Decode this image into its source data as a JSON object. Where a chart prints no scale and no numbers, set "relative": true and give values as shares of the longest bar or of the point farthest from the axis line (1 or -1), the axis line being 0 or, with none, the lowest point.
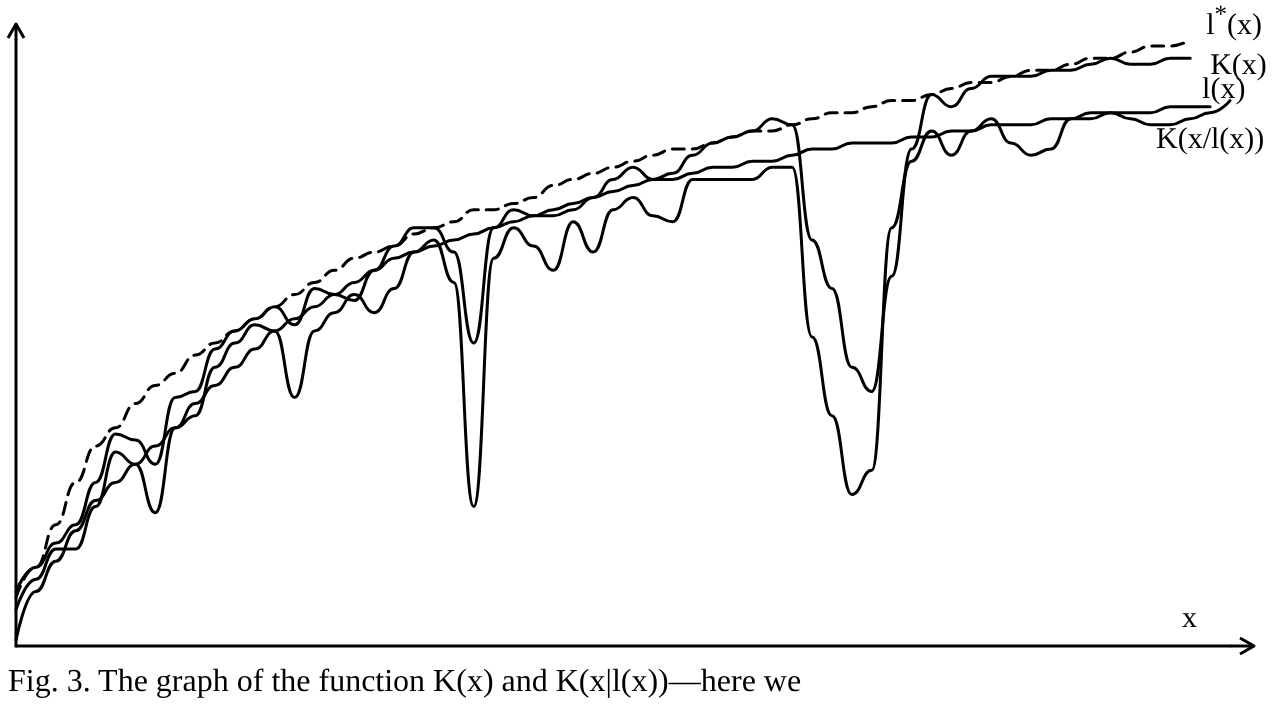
{
  "chart_data": {
    "type": "line",
    "relative": true,
    "xlabel": "x",
    "legend": false,
    "grid": false,
    "marker": "none",
    "categories": [
      null,
      null,
      null,
      null,
      null,
      null,
      null,
      null,
      null,
      null,
      null,
      null,
      null,
      null,
      null,
      null,
      null,
      null,
      null,
      null,
      null,
      null,
      null,
      null,
      null,
      null,
      null,
      null,
      null,
      null,
      null,
      null,
      null,
      null,
      null,
      null,
      null,
      null,
      null,
      null,
      null,
      null,
      null,
      null,
      null,
      null,
      null,
      null,
      null,
      null,
      null,
      null,
      null,
      null,
      null,
      null,
      null,
      null,
      null,
      null,
      null,
      null
    ],
    "series": [
      {
        "name": "l$^{*}$(x)",
        "color": "#000000",
        "line_style": "dashed",
        "values": [
          0.08,
          0.13,
          0.2,
          0.27,
          0.33,
          0.36,
          0.4,
          0.43,
          0.45,
          0.48,
          0.5,
          0.52,
          0.54,
          0.56,
          0.58,
          0.6,
          0.62,
          0.64,
          0.65,
          0.66,
          0.68,
          0.69,
          0.7,
          0.72,
          0.72,
          0.73,
          0.74,
          0.76,
          0.77,
          0.78,
          0.79,
          0.8,
          0.81,
          0.82,
          0.82,
          0.83,
          0.84,
          0.85,
          0.85,
          0.86,
          0.87,
          0.88,
          0.88,
          0.89,
          0.9,
          0.9,
          0.91,
          0.92,
          0.93,
          0.93,
          0.94,
          0.95,
          0.95,
          0.96,
          0.97,
          0.97,
          0.98,
          0.99,
          0.99,
          1,
          null,
          null
        ]
      },
      {
        "name": "K(x)",
        "color": "#000000",
        "line_style": "solid",
        "values": [
          0.09,
          0.13,
          0.17,
          0.2,
          0.27,
          0.35,
          0.34,
          0.3,
          0.41,
          0.42,
          0.49,
          0.52,
          0.54,
          0.56,
          0.53,
          0.59,
          0.58,
          0.57,
          0.62,
          0.66,
          0.69,
          0.69,
          0.65,
          0.5,
          0.69,
          0.72,
          0.71,
          0.71,
          0.72,
          0.74,
          0.77,
          0.79,
          0.77,
          0.78,
          0.81,
          0.83,
          0.84,
          0.85,
          0.87,
          0.86,
          0.67,
          0.59,
          0.46,
          0.42,
          0.61,
          0.82,
          0.91,
          0.89,
          0.92,
          0.94,
          0.94,
          0.94,
          0.95,
          0.95,
          0.96,
          0.97,
          0.96,
          0.96,
          0.97,
          0.97,
          null,
          null
        ]
      },
      {
        "name": "l(x)",
        "color": "#000000",
        "line_style": "solid",
        "values": [
          0.01,
          0.09,
          0.14,
          0.19,
          0.24,
          0.27,
          0.3,
          0.33,
          0.36,
          0.4,
          0.43,
          0.46,
          0.49,
          0.52,
          0.54,
          0.56,
          0.58,
          0.6,
          0.62,
          0.64,
          0.65,
          0.66,
          0.67,
          0.68,
          0.69,
          0.7,
          0.71,
          0.72,
          0.73,
          0.74,
          0.75,
          0.76,
          0.77,
          0.77,
          0.78,
          0.79,
          0.79,
          0.8,
          0.8,
          0.81,
          0.82,
          0.82,
          0.83,
          0.83,
          0.83,
          0.84,
          0.84,
          0.85,
          0.85,
          0.86,
          0.86,
          0.86,
          0.87,
          0.87,
          0.87,
          0.88,
          0.88,
          0.88,
          0.89,
          0.89,
          0.89,
          null
        ]
      },
      {
        "name": "K(x/l(x))",
        "color": "#000000",
        "line_style": "solid",
        "values": [
          0.06,
          0.11,
          0.16,
          0.16,
          0.23,
          0.32,
          0.3,
          0.22,
          0.36,
          0.38,
          0.46,
          0.5,
          0.53,
          0.52,
          0.41,
          0.52,
          0.55,
          0.58,
          0.55,
          0.59,
          0.65,
          0.67,
          0.6,
          0.23,
          0.64,
          0.69,
          0.66,
          0.62,
          0.7,
          0.65,
          0.72,
          0.74,
          0.71,
          0.7,
          0.77,
          0.77,
          0.77,
          0.77,
          0.79,
          0.79,
          0.51,
          0.38,
          0.25,
          0.29,
          0.69,
          0.8,
          0.85,
          0.81,
          0.85,
          0.87,
          0.83,
          0.81,
          0.82,
          0.87,
          0.88,
          0.88,
          0.87,
          0.86,
          0.86,
          0.87,
          0.88,
          0.9
        ]
      }
    ],
    "annotations": [
      "Fig. 3. The graph of the function K(x) and K(x|l(x))—here we"
    ]
  }
}
